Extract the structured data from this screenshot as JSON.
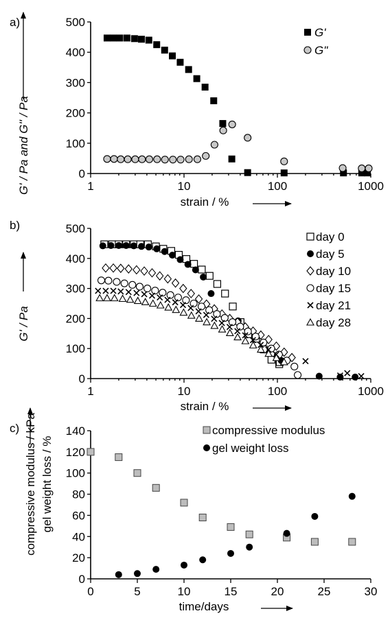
{
  "chart_data": [
    {
      "panel_label": "a)",
      "type": "scatter",
      "x_scale": "log",
      "xlim": [
        1,
        1000
      ],
      "ylim": [
        0,
        500
      ],
      "x_ticks": [
        "1",
        "10",
        "100",
        "1000"
      ],
      "y_ticks": [
        "0",
        "100",
        "200",
        "300",
        "400",
        "500"
      ],
      "xlabel": "strain / %",
      "ylabel": "G' / Pa and G'' / Pa",
      "legend_position": "top-right",
      "colors": {
        "g_prime": "#000000",
        "g_double_prime": "#bdbdbd"
      },
      "series": [
        {
          "name": "G'",
          "marker": "filled-square",
          "x": [
            1.5,
            1.75,
            2.05,
            2.45,
            2.95,
            3.5,
            4.2,
            5.1,
            6.2,
            7.5,
            9.1,
            11.2,
            13.7,
            16.8,
            20.8,
            26,
            32.5,
            48,
            118,
            510,
            800,
            920
          ],
          "y": [
            447,
            447,
            447,
            447,
            445,
            443,
            440,
            425,
            407,
            388,
            367,
            343,
            313,
            285,
            240,
            165,
            48,
            3,
            2,
            2,
            2,
            2
          ]
        },
        {
          "name": "G\"",
          "marker": "open-circle",
          "x": [
            1.5,
            1.78,
            2.1,
            2.5,
            3.0,
            3.55,
            4.25,
            5.15,
            6.25,
            7.6,
            9.2,
            11.3,
            13.9,
            17.1,
            21.2,
            26.3,
            32.8,
            48,
            118,
            500,
            800,
            950
          ],
          "y": [
            48,
            48,
            47,
            47,
            47,
            47,
            47,
            47,
            46,
            46,
            46,
            47,
            47,
            58,
            95,
            142,
            162,
            118,
            40,
            18,
            17,
            17
          ]
        }
      ]
    },
    {
      "panel_label": "b)",
      "type": "scatter",
      "x_scale": "log",
      "xlim": [
        1,
        1000
      ],
      "ylim": [
        0,
        500
      ],
      "x_ticks": [
        "1",
        "10",
        "100",
        "1000"
      ],
      "y_ticks": [
        "0",
        "100",
        "200",
        "300",
        "400",
        "500"
      ],
      "xlabel": "strain / %",
      "ylabel": "G' / Pa",
      "legend_position": "top-right",
      "series": [
        {
          "name": "day 0",
          "marker": "open-square",
          "x": [
            1.4,
            1.7,
            2.0,
            2.4,
            2.9,
            3.4,
            4.1,
            5.0,
            6.0,
            7.3,
            8.8,
            10.6,
            12.8,
            15.5,
            18.8,
            22.7,
            27.5,
            33.3,
            40.3,
            48.7,
            59,
            71.4,
            86.4,
            104.6,
            106
          ],
          "y": [
            447,
            447,
            447,
            447,
            447,
            447,
            447,
            440,
            432,
            425,
            412,
            398,
            382,
            363,
            342,
            315,
            283,
            240,
            188,
            148,
            133,
            97,
            63,
            48,
            55
          ]
        },
        {
          "name": "day 5",
          "marker": "filled-circle",
          "x": [
            1.35,
            1.65,
            2.0,
            2.4,
            2.9,
            3.5,
            4.2,
            5.1,
            6.2,
            7.5,
            9.1,
            11.0,
            13.3,
            16.1,
            19.5,
            38,
            100,
            110,
            280,
            470,
            680
          ],
          "y": [
            442,
            443,
            443,
            443,
            442,
            440,
            438,
            432,
            423,
            411,
            396,
            380,
            362,
            338,
            283,
            192,
            78,
            60,
            8,
            5,
            5
          ]
        },
        {
          "name": "day 10",
          "marker": "open-diamond",
          "x": [
            1.45,
            1.75,
            2.1,
            2.55,
            3.1,
            3.75,
            4.55,
            5.5,
            6.7,
            8.1,
            9.8,
            11.9,
            14.4,
            17.4,
            21.1,
            25.5,
            30.9,
            37.4,
            45.3,
            54.9,
            66.5,
            80.5,
            97.4,
            118,
            143
          ],
          "y": [
            368,
            368,
            367,
            365,
            362,
            358,
            352,
            342,
            332,
            318,
            300,
            283,
            265,
            248,
            232,
            215,
            200,
            188,
            172,
            158,
            145,
            130,
            108,
            88,
            70
          ]
        },
        {
          "name": "day 15",
          "marker": "open-circle",
          "x": [
            1.3,
            1.55,
            1.9,
            2.3,
            2.8,
            3.35,
            4.05,
            4.9,
            5.9,
            7.15,
            8.65,
            10.5,
            12.7,
            15.4,
            18.6,
            22.5,
            27.3,
            33,
            40,
            48.4,
            58.6,
            71,
            86,
            104,
            126,
            152,
            165
          ],
          "y": [
            327,
            326,
            322,
            317,
            312,
            306,
            300,
            293,
            286,
            278,
            270,
            261,
            250,
            240,
            228,
            215,
            202,
            188,
            173,
            157,
            140,
            120,
            100,
            80,
            60,
            40,
            12
          ]
        },
        {
          "name": "day 21",
          "marker": "x",
          "x": [
            1.2,
            1.45,
            1.75,
            2.1,
            2.55,
            3.1,
            3.75,
            4.55,
            5.5,
            6.65,
            8.05,
            9.75,
            11.8,
            14.3,
            17.3,
            21,
            25.4,
            30.8,
            37.3,
            45.2,
            54.7,
            66.2,
            80.2,
            97,
            200,
            470,
            560,
            790
          ],
          "y": [
            292,
            292,
            292,
            290,
            288,
            285,
            281,
            276,
            270,
            262,
            254,
            245,
            235,
            224,
            212,
            199,
            185,
            172,
            158,
            144,
            128,
            112,
            96,
            80,
            58,
            10,
            18,
            8
          ]
        },
        {
          "name": "day 28",
          "marker": "open-triangle",
          "x": [
            1.25,
            1.5,
            1.8,
            2.2,
            2.65,
            3.2,
            3.85,
            4.65,
            5.6,
            6.8,
            8.2,
            9.9,
            12.0,
            14.5,
            17.5,
            21.2,
            25.6,
            31,
            37.5,
            45.4,
            55,
            66.5,
            80.5,
            97.5,
            118
          ],
          "y": [
            268,
            268,
            268,
            266,
            263,
            259,
            255,
            250,
            244,
            237,
            229,
            220,
            210,
            200,
            188,
            176,
            164,
            152,
            138,
            125,
            111,
            97,
            83,
            69,
            55
          ]
        }
      ]
    },
    {
      "panel_label": "c)",
      "type": "scatter",
      "x_scale": "linear",
      "xlim": [
        0,
        30
      ],
      "ylim": [
        0,
        140
      ],
      "x_ticks": [
        "0",
        "5",
        "10",
        "15",
        "20",
        "25",
        "30"
      ],
      "y_ticks": [
        "0",
        "20",
        "40",
        "60",
        "80",
        "100",
        "120",
        "140"
      ],
      "xlabel": "time/days",
      "ylabel": "compressive modulus / kPa",
      "ylabel2": "gel weight loss / %",
      "legend_position": "top-right",
      "series": [
        {
          "name": "compressive modulus",
          "marker": "gray-square",
          "x": [
            0,
            3,
            5,
            7,
            10,
            12,
            15,
            17,
            21,
            24,
            28
          ],
          "y": [
            120,
            115,
            100,
            86,
            72,
            58,
            49,
            42,
            39,
            35,
            35
          ]
        },
        {
          "name": "gel weight loss",
          "marker": "filled-circle",
          "x": [
            3,
            5,
            7,
            10,
            12,
            15,
            17,
            21,
            24,
            28
          ],
          "y": [
            4,
            5,
            9,
            13,
            18,
            24,
            30,
            43,
            59,
            78
          ]
        }
      ]
    }
  ]
}
